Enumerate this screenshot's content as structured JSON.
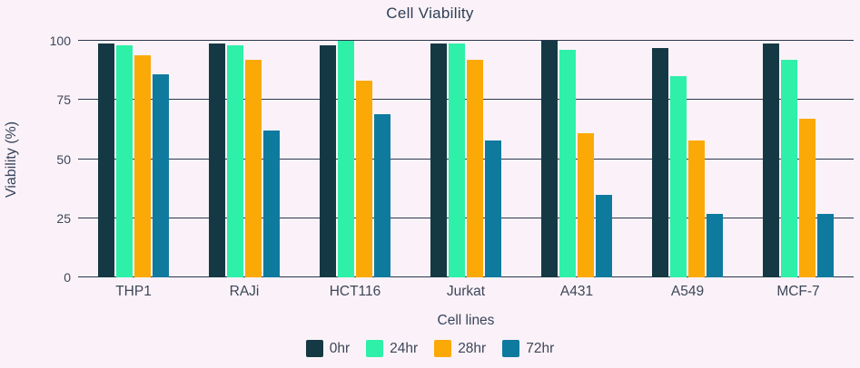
{
  "chart_data": {
    "type": "bar",
    "title": "Cell Viability",
    "xlabel": "Cell lines",
    "ylabel": "Viability (%)",
    "categories": [
      "THP1",
      "RAJi",
      "HCT116",
      "Jurkat",
      "A431",
      "A549",
      "MCF-7"
    ],
    "series": [
      {
        "name": "0hr",
        "color": "#143944",
        "values": [
          99,
          99,
          98,
          99,
          100,
          97,
          99
        ]
      },
      {
        "name": "24hr",
        "color": "#2ef0a8",
        "values": [
          98,
          98,
          100,
          99,
          96,
          85,
          92
        ]
      },
      {
        "name": "28hr",
        "color": "#fba907",
        "values": [
          94,
          92,
          83,
          92,
          61,
          58,
          67
        ]
      },
      {
        "name": "72hr",
        "color": "#0e7a9e",
        "values": [
          86,
          62,
          69,
          58,
          35,
          27,
          27
        ]
      }
    ],
    "ylim": [
      0,
      100
    ],
    "yticks": [
      0,
      25,
      50,
      75,
      100
    ],
    "grid": true,
    "legend_position": "bottom"
  },
  "colors": {
    "background": "#faf2f8",
    "gridline": "#2c3850",
    "text": "#3d4659"
  }
}
